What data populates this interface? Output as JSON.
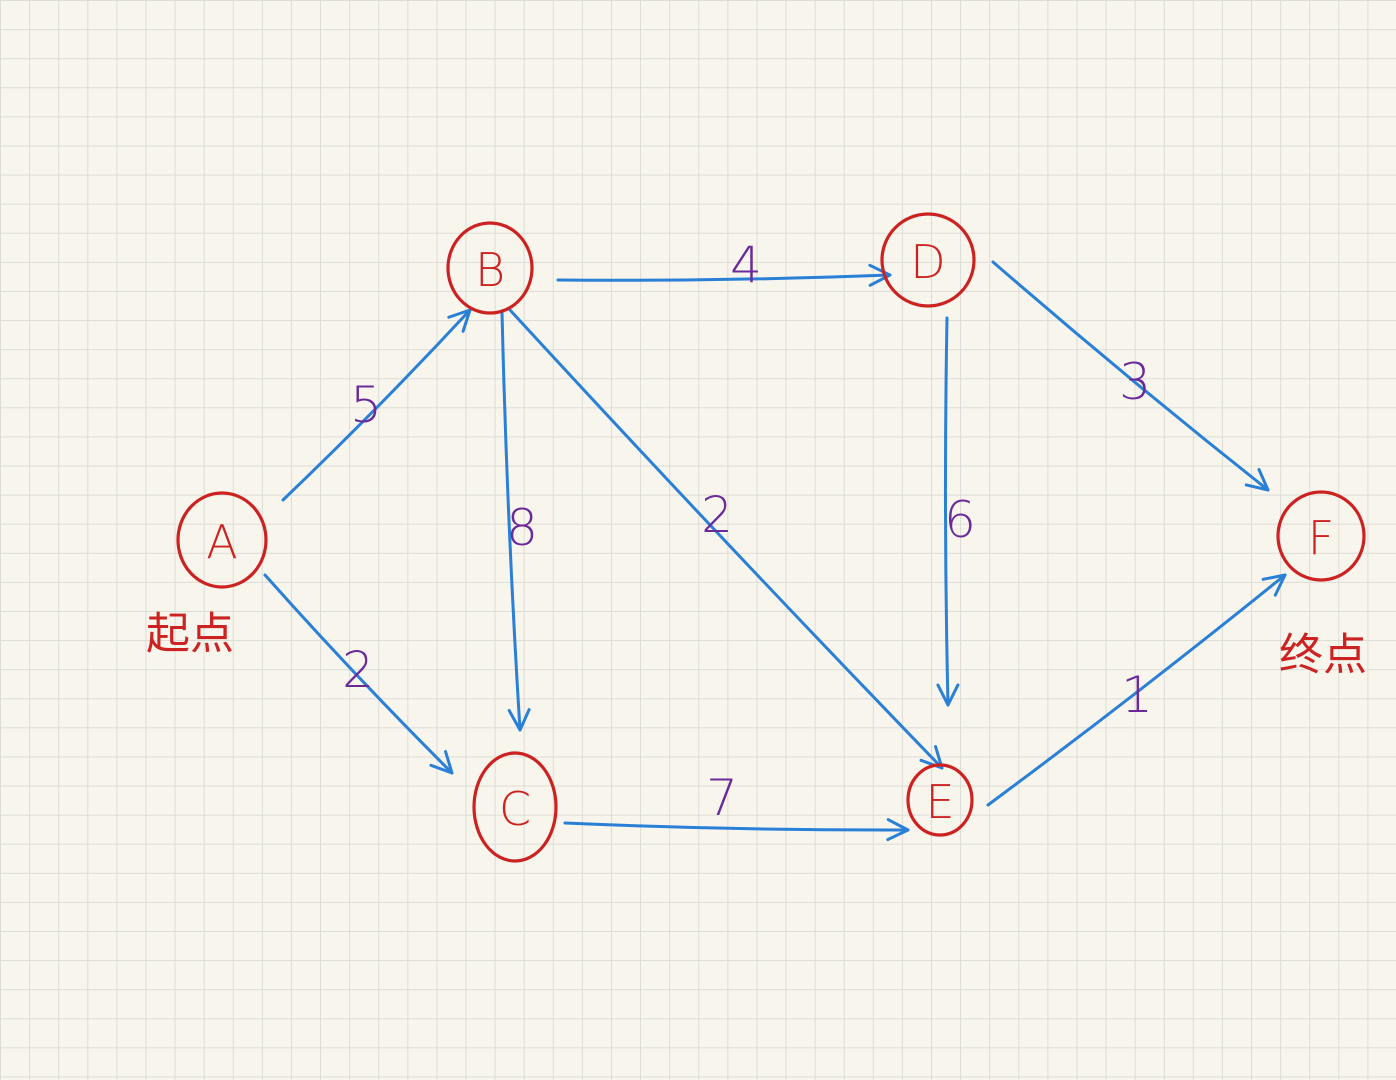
{
  "colors": {
    "node": "#cc2222",
    "edge": "#2a7fd6",
    "weight": "#6a2a9a",
    "annotation": "#cc2222"
  },
  "nodes": [
    {
      "id": "A",
      "label": "A"
    },
    {
      "id": "B",
      "label": "B"
    },
    {
      "id": "C",
      "label": "C"
    },
    {
      "id": "D",
      "label": "D"
    },
    {
      "id": "E",
      "label": "E"
    },
    {
      "id": "F",
      "label": "F"
    }
  ],
  "edges": [
    {
      "from": "A",
      "to": "B",
      "weight": "5"
    },
    {
      "from": "A",
      "to": "C",
      "weight": "2"
    },
    {
      "from": "B",
      "to": "D",
      "weight": "4"
    },
    {
      "from": "B",
      "to": "C",
      "weight": "8"
    },
    {
      "from": "B",
      "to": "E",
      "weight": "2"
    },
    {
      "from": "D",
      "to": "E",
      "weight": "6"
    },
    {
      "from": "D",
      "to": "F",
      "weight": "3"
    },
    {
      "from": "C",
      "to": "E",
      "weight": "7"
    },
    {
      "from": "E",
      "to": "F",
      "weight": "1"
    }
  ],
  "annotations": {
    "start": "起点",
    "end": "终点"
  }
}
